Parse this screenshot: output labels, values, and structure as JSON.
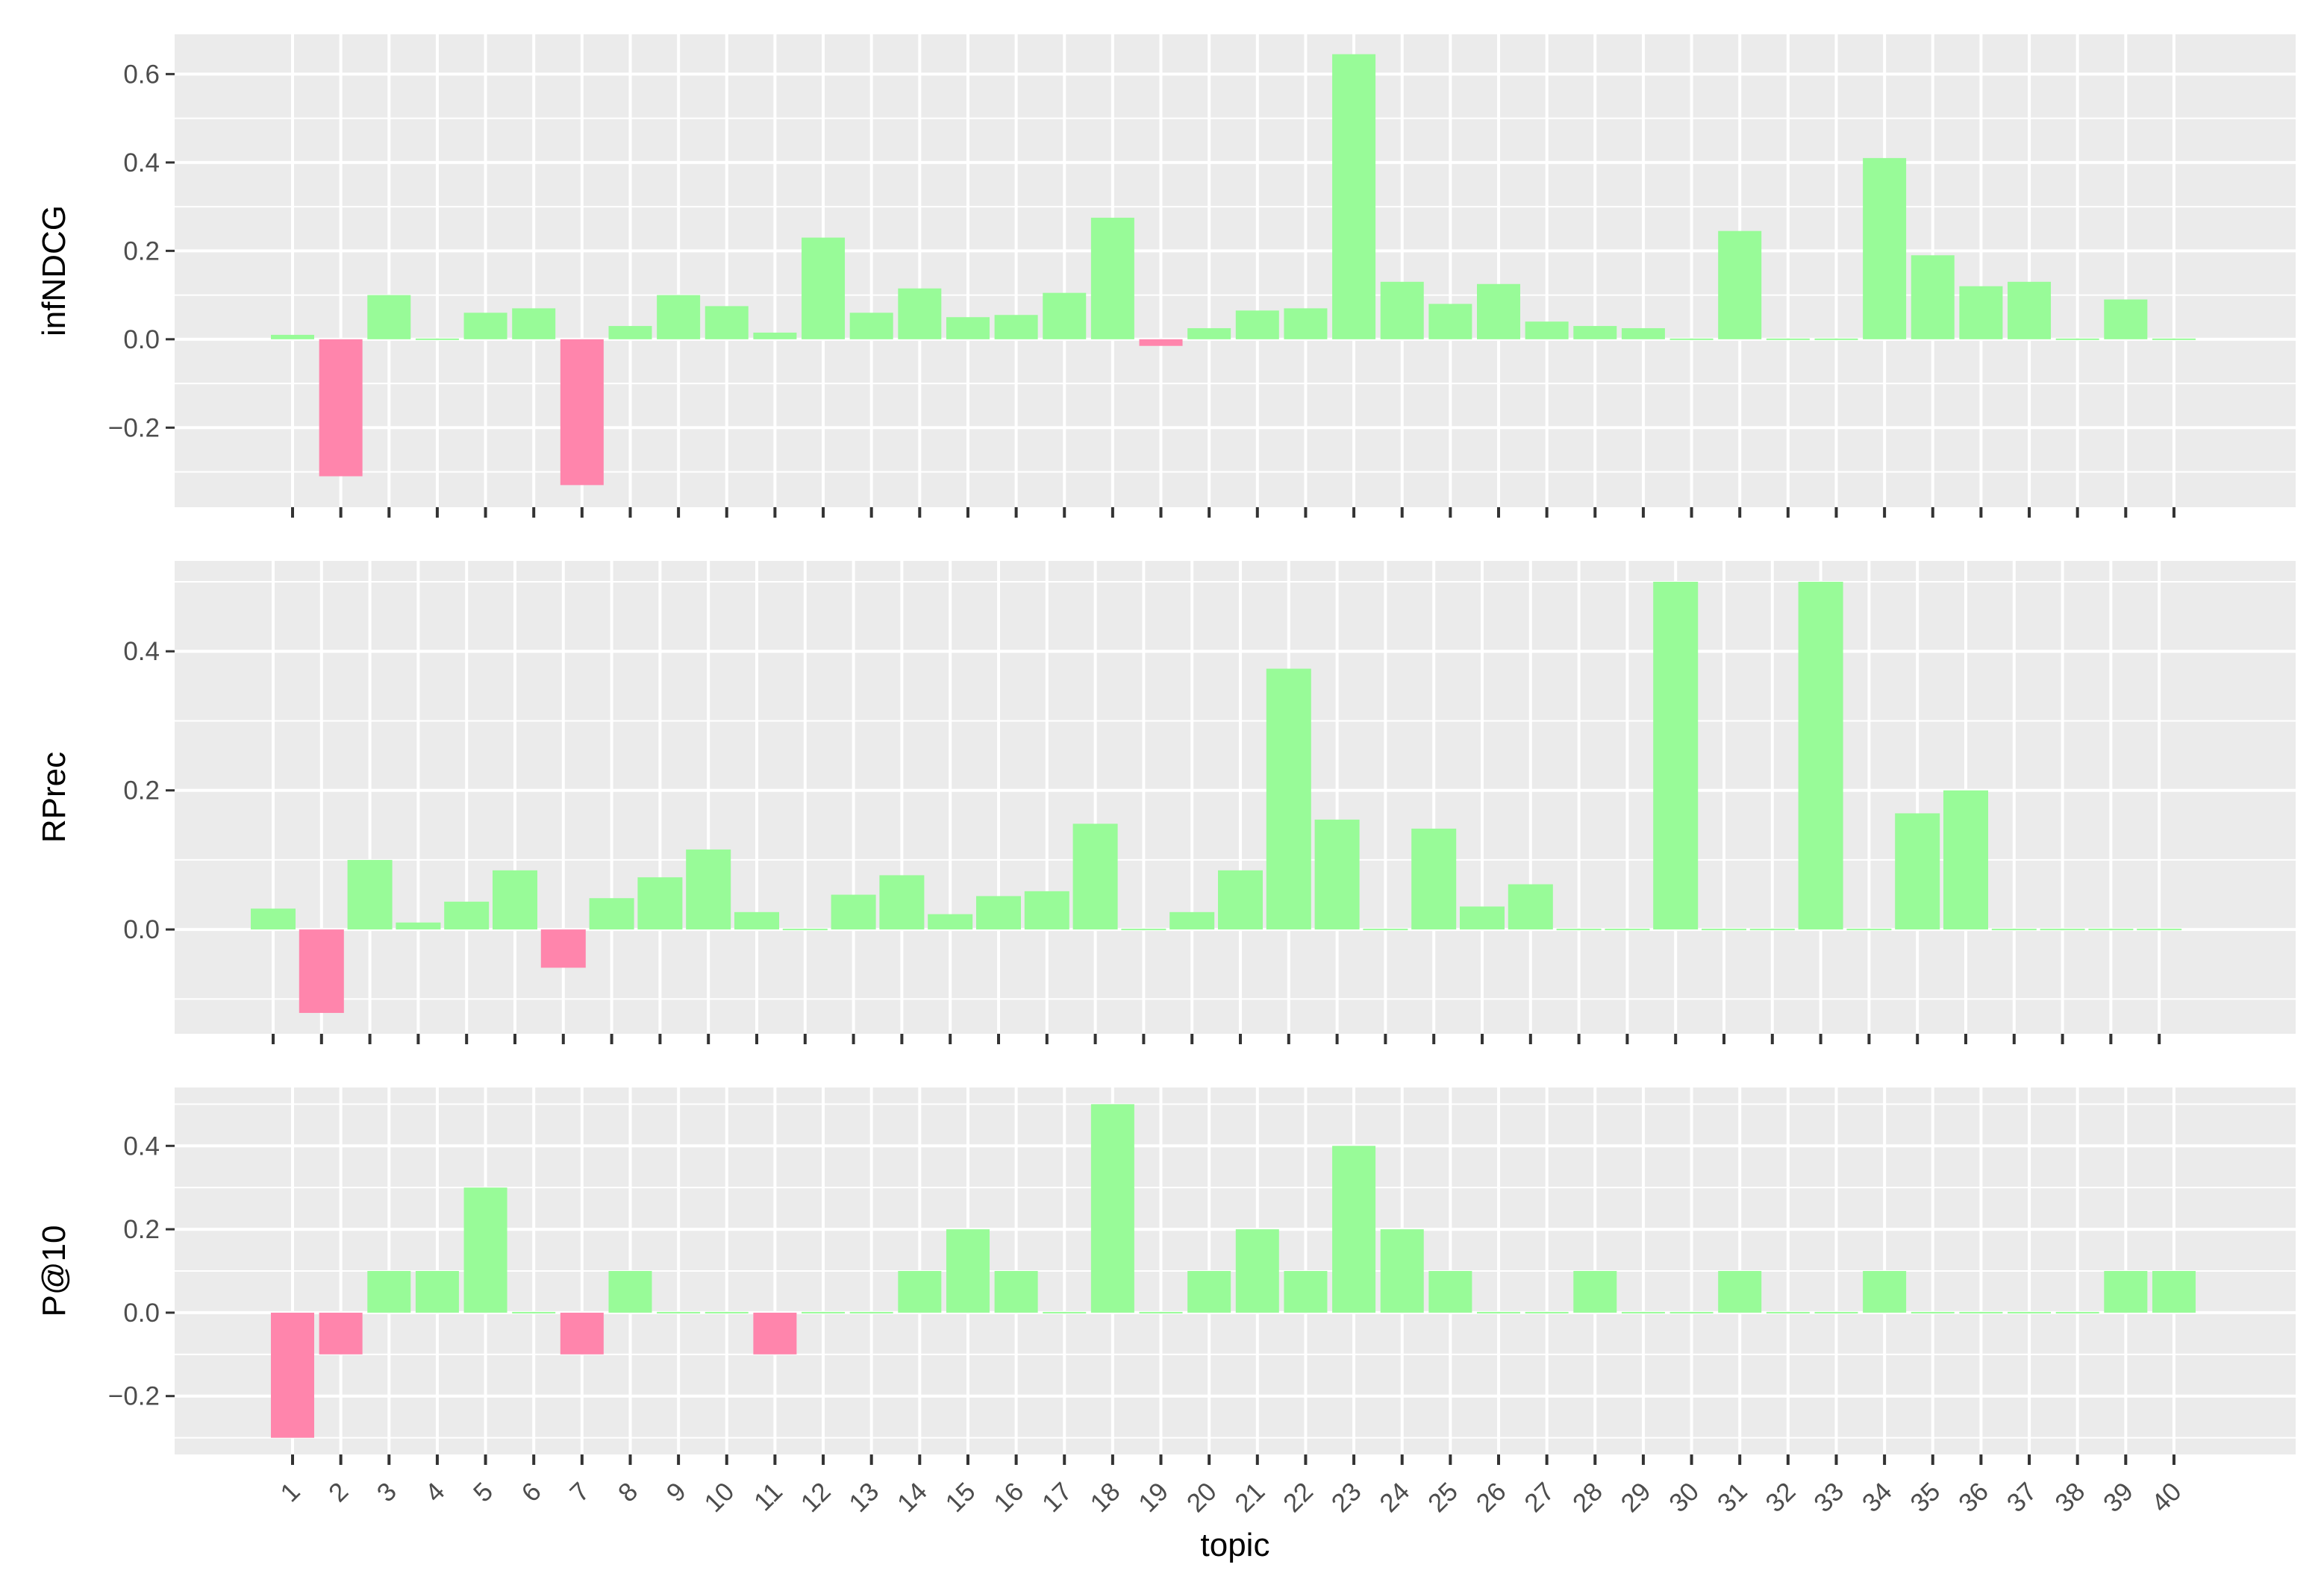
{
  "colors": {
    "positive": "#98fb98",
    "negative": "#ff85ac",
    "panel_background": "#ebebeb",
    "grid": "#ffffff",
    "tick_text": "#4d4d4d",
    "axis_title": "#000000"
  },
  "chart_data": {
    "type": "bar",
    "layout": "faceted vertically, shared x axis",
    "grid": true,
    "legend": "none",
    "xlabel": "topic",
    "categories": [
      "1",
      "2",
      "3",
      "4",
      "5",
      "6",
      "7",
      "8",
      "9",
      "10",
      "11",
      "12",
      "13",
      "14",
      "15",
      "16",
      "17",
      "18",
      "19",
      "20",
      "21",
      "22",
      "23",
      "24",
      "25",
      "26",
      "27",
      "28",
      "29",
      "30",
      "31",
      "32",
      "33",
      "34",
      "35",
      "36",
      "37",
      "38",
      "39",
      "40"
    ],
    "panels": [
      {
        "ylabel": "infNDCG",
        "ylim": [
          -0.38,
          0.69
        ],
        "yticks": [
          -0.2,
          0.0,
          0.2,
          0.4,
          0.6
        ],
        "ytick_labels": [
          "−0.2",
          "0.0",
          "0.2",
          "0.4",
          "0.6"
        ],
        "values": [
          0.01,
          -0.31,
          0.1,
          0.0,
          0.06,
          0.07,
          -0.33,
          0.03,
          0.1,
          0.075,
          0.015,
          0.23,
          0.06,
          0.115,
          0.05,
          0.055,
          0.105,
          0.275,
          -0.015,
          0.025,
          0.065,
          0.07,
          0.645,
          0.13,
          0.08,
          0.125,
          0.04,
          0.03,
          0.025,
          0.0,
          0.245,
          0.0,
          0.0,
          0.41,
          0.19,
          0.12,
          0.13,
          0.0,
          0.09,
          0.0
        ]
      },
      {
        "ylabel": "RPrec",
        "ylim": [
          -0.15,
          0.53
        ],
        "yticks": [
          0.0,
          0.2,
          0.4
        ],
        "ytick_labels": [
          "0.0",
          "0.2",
          "0.4"
        ],
        "values": [
          0.03,
          -0.12,
          0.1,
          0.01,
          0.04,
          0.085,
          -0.055,
          0.045,
          0.075,
          0.115,
          0.025,
          0.0,
          0.05,
          0.078,
          0.022,
          0.048,
          0.055,
          0.152,
          0.0,
          0.025,
          0.085,
          0.375,
          0.158,
          0.0,
          0.145,
          0.033,
          0.065,
          0.0,
          0.0,
          0.5,
          0.0,
          0.0,
          0.5,
          0.0,
          0.167,
          0.2,
          0.0,
          0.0,
          0.0,
          0.0
        ]
      },
      {
        "ylabel": "P@10",
        "ylim": [
          -0.34,
          0.54
        ],
        "yticks": [
          -0.2,
          0.0,
          0.2,
          0.4
        ],
        "ytick_labels": [
          "−0.2",
          "0.0",
          "0.2",
          "0.4"
        ],
        "values": [
          -0.3,
          -0.1,
          0.1,
          0.1,
          0.3,
          0.0,
          -0.1,
          0.1,
          0.0,
          0.0,
          -0.1,
          0.0,
          0.0,
          0.1,
          0.2,
          0.1,
          0.0,
          0.5,
          0.0,
          0.1,
          0.2,
          0.1,
          0.4,
          0.2,
          0.1,
          0.0,
          0.0,
          0.1,
          0.0,
          0.0,
          0.1,
          0.0,
          0.0,
          0.1,
          0.0,
          0.0,
          0.0,
          0.0,
          0.1,
          0.1
        ]
      }
    ]
  }
}
